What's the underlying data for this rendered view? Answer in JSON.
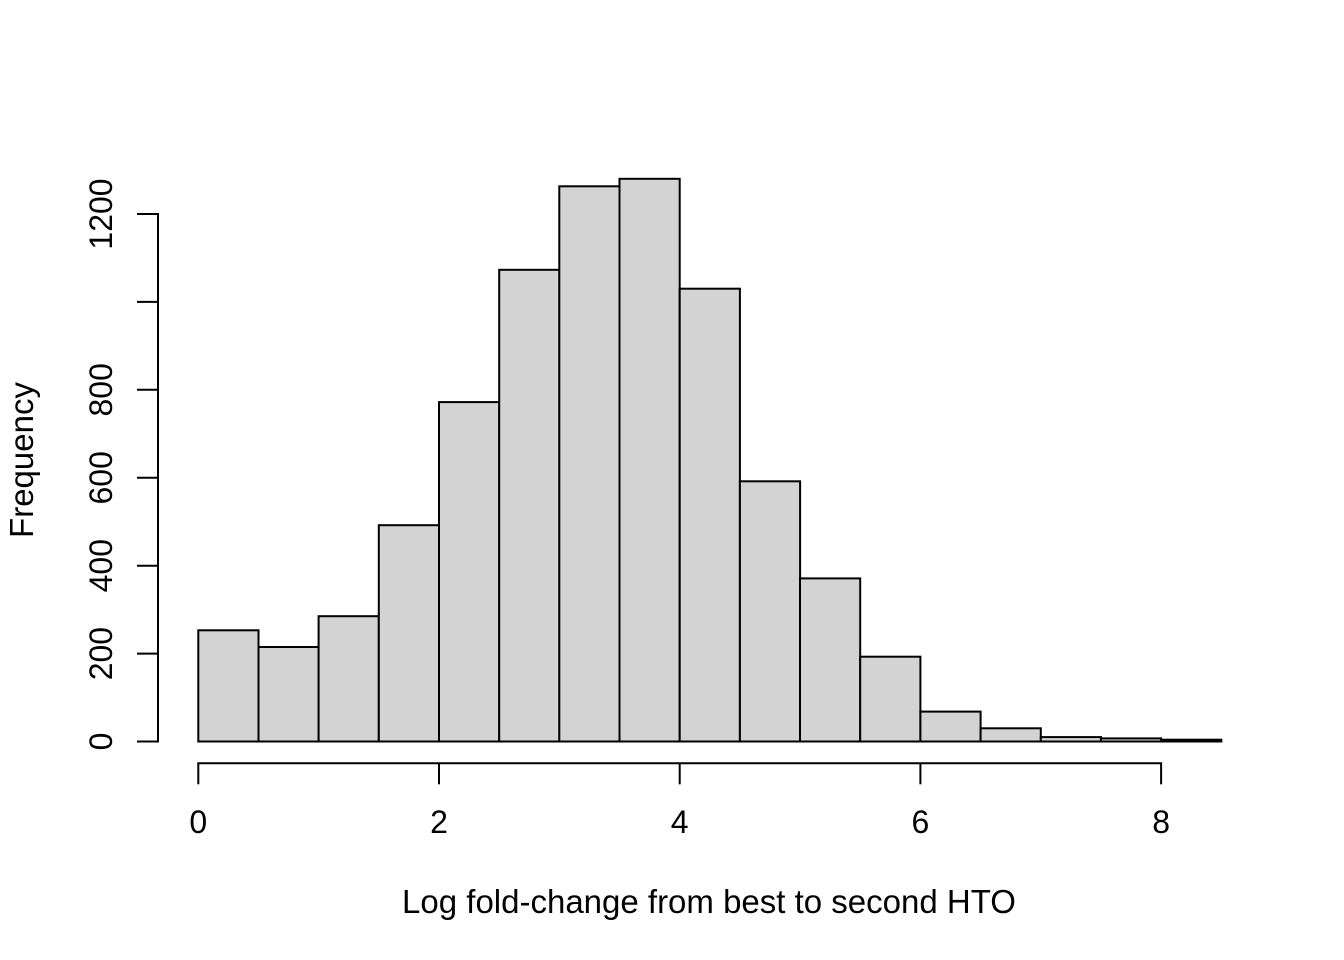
{
  "chart_data": {
    "type": "bar",
    "subtype": "histogram",
    "title": "",
    "xlabel": "Log fold-change from best to second HTO",
    "ylabel": "Frequency",
    "bin_width": 0.5,
    "bin_edges": [
      0,
      0.5,
      1,
      1.5,
      2,
      2.5,
      3,
      3.5,
      4,
      4.5,
      5,
      5.5,
      6,
      6.5,
      7,
      7.5,
      8,
      8.5
    ],
    "counts": [
      253,
      215,
      285,
      492,
      772,
      1073,
      1263,
      1280,
      1030,
      592,
      371,
      193,
      68,
      30,
      10,
      7,
      4
    ],
    "xlim": [
      0,
      8.5
    ],
    "ylim": [
      0,
      1200
    ],
    "x_ticks": [
      0,
      2,
      4,
      6,
      8
    ],
    "x_tick_labels": [
      "0",
      "2",
      "4",
      "6",
      "8"
    ],
    "y_ticks": [
      0,
      200,
      400,
      600,
      800,
      1000,
      1200
    ],
    "y_tick_labels": [
      "0",
      "200",
      "400",
      "600",
      "800",
      "",
      "1200"
    ],
    "grid": false,
    "legend": false,
    "background": "#ffffff",
    "bar_fill": "#d3d3d3",
    "bar_stroke": "#000000",
    "axis_color": "#000000"
  }
}
